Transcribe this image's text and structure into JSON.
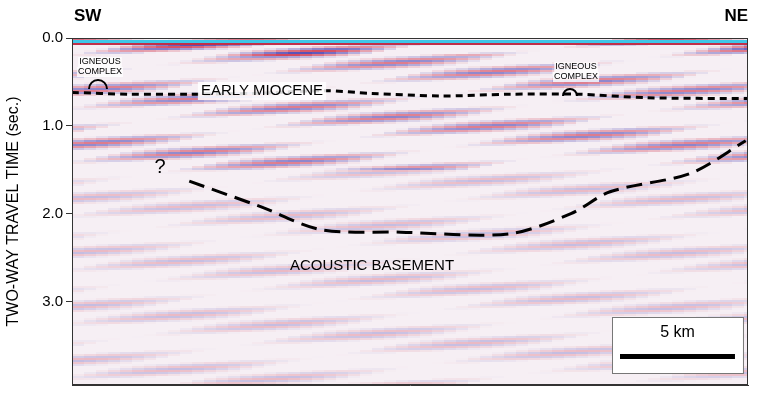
{
  "chart_data": {
    "type": "line",
    "side_labels": [
      "SW",
      "NE"
    ],
    "y_label": "TWO-WAY TRAVEL TIME (sec.)",
    "annotations": [
      "IGNEOUS COMPLEX",
      "IGNEOUS COMPLEX",
      "?"
    ],
    "scale_bar": {
      "length": 5,
      "label": "5 km"
    },
    "xlim": [
      0,
      29.4
    ],
    "ylim": [
      0,
      3.95
    ],
    "yticks": [
      {
        "value": 0,
        "label": "0.0"
      },
      {
        "value": 1,
        "label": "1.0"
      },
      {
        "value": 2,
        "label": "2.0"
      },
      {
        "value": 3,
        "label": "3.0"
      }
    ],
    "tick_labels": "y",
    "grid": false,
    "series": [
      {
        "name": "EARLY MIOCENE",
        "color": "#000000",
        "line_style": "dotted",
        "x": [
          0,
          2.5,
          5,
          8,
          11,
          13,
          16,
          19,
          22,
          25,
          29.4
        ],
        "values": [
          0.62,
          0.64,
          0.64,
          0.63,
          0.6,
          0.63,
          0.66,
          0.64,
          0.64,
          0.68,
          0.69
        ]
      },
      {
        "name": "ACOUSTIC BASEMENT",
        "color": "#000000",
        "line_style": "dashed",
        "x": [
          5.1,
          8.2,
          10.8,
          14.3,
          19.0,
          21.7,
          23.4,
          26.9,
          29.3
        ],
        "values": [
          1.63,
          1.92,
          2.18,
          2.21,
          2.23,
          2.0,
          1.75,
          1.54,
          1.17
        ]
      }
    ]
  }
}
